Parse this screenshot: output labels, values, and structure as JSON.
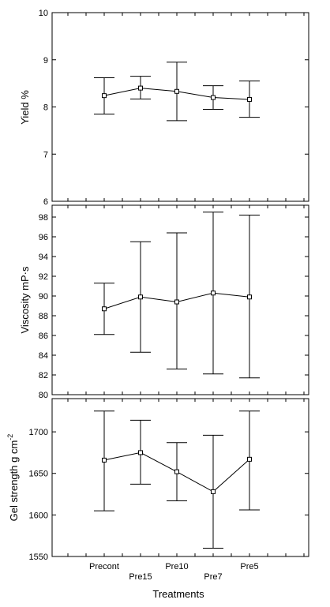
{
  "chart_data": [
    {
      "type": "line",
      "ylabel": "Yield %",
      "xlabel": "",
      "ylim": [
        6,
        10
      ],
      "yticks": [
        6,
        7,
        8,
        9,
        10
      ],
      "categories": [
        "Precont",
        "Pre15",
        "Pre10",
        "Pre7",
        "Pre5"
      ],
      "series": [
        {
          "values": [
            8.24,
            8.4,
            8.33,
            8.2,
            8.16
          ],
          "error_low": [
            7.85,
            8.17,
            7.71,
            7.95,
            7.78
          ],
          "error_high": [
            8.62,
            8.65,
            8.95,
            8.45,
            8.55
          ]
        }
      ]
    },
    {
      "type": "line",
      "ylabel": "Viscosity mP·s",
      "xlabel": "",
      "ylim": [
        80,
        99.2
      ],
      "yticks": [
        80,
        82,
        84,
        86,
        88,
        90,
        92,
        94,
        96,
        98
      ],
      "categories": [
        "Precont",
        "Pre15",
        "Pre10",
        "Pre7",
        "Pre5"
      ],
      "series": [
        {
          "values": [
            88.7,
            89.9,
            89.4,
            90.3,
            89.9
          ],
          "error_low": [
            86.1,
            84.3,
            82.6,
            82.1,
            81.7
          ],
          "error_high": [
            91.3,
            95.5,
            96.4,
            98.5,
            98.2
          ]
        }
      ]
    },
    {
      "type": "line",
      "ylabel": "Gel strength g cm",
      "ylabel_sup": "-2",
      "xlabel": "Treatments",
      "ylim": [
        1550,
        1740
      ],
      "yticks": [
        1550,
        1600,
        1650,
        1700
      ],
      "categories": [
        "Precont",
        "Pre15",
        "Pre10",
        "Pre7",
        "Pre5"
      ],
      "series": [
        {
          "values": [
            1666,
            1675,
            1652,
            1628,
            1667
          ],
          "error_low": [
            1605,
            1637,
            1617,
            1560,
            1606
          ],
          "error_high": [
            1725,
            1714,
            1687,
            1696,
            1725
          ]
        }
      ]
    }
  ]
}
